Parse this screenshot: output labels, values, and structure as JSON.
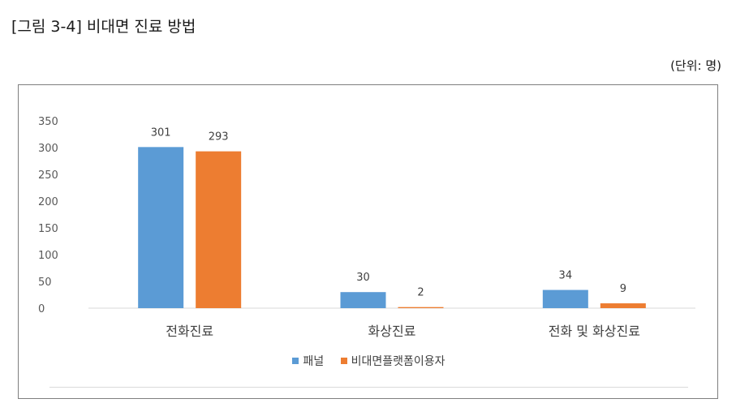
{
  "figure_title": "[그림 3-4] 비대면 진료 방법",
  "unit_note": "(단위: 명)",
  "chart_data": {
    "type": "bar",
    "categories": [
      "전화진료",
      "화상진료",
      "전화 및 화상진료"
    ],
    "series": [
      {
        "name": "패널",
        "values": [
          301,
          30,
          34
        ],
        "color": "#5b9bd5"
      },
      {
        "name": "비대면플랫폼이용자",
        "values": [
          293,
          2,
          9
        ],
        "color": "#ed7d31"
      }
    ],
    "title": "",
    "xlabel": "",
    "ylabel": "",
    "ylim": [
      0,
      350
    ],
    "yticks": [
      0,
      50,
      100,
      150,
      200,
      250,
      300,
      350
    ],
    "grid": false,
    "data_labels": true,
    "legend_position": "bottom"
  }
}
